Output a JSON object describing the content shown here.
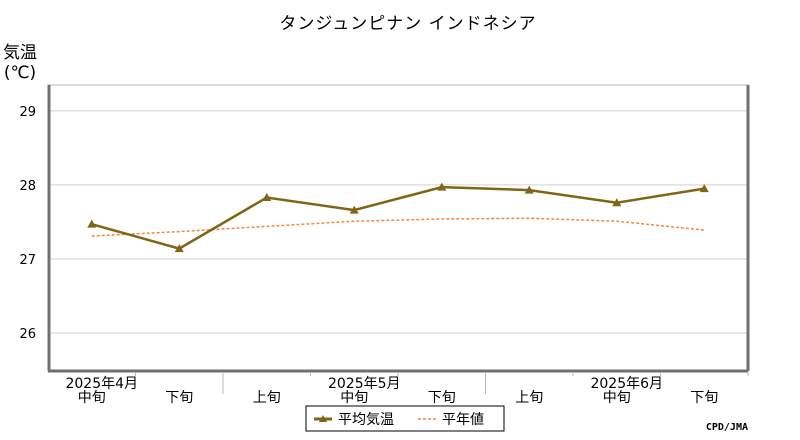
{
  "chart_data": {
    "type": "line",
    "title": "タンジュンピナン インドネシア",
    "ylabel": "気温",
    "yunit": "(℃)",
    "ylim": [
      25.5,
      29.35
    ],
    "yticks": [
      26,
      27,
      28,
      29
    ],
    "grid": true,
    "categories": [
      "中旬",
      "下旬",
      "上旬",
      "中旬",
      "下旬",
      "上旬",
      "中旬",
      "下旬"
    ],
    "month_labels": [
      {
        "label": "2025年4月",
        "at_index": 0
      },
      {
        "label": "2025年5月",
        "at_index": 3
      },
      {
        "label": "2025年6月",
        "at_index": 6
      }
    ],
    "series": [
      {
        "name": "平均気温",
        "color": "#806614",
        "style": "solid",
        "marker": "triangle",
        "values": [
          27.47,
          27.14,
          27.83,
          27.66,
          27.97,
          27.93,
          27.76,
          27.95
        ]
      },
      {
        "name": "平年値",
        "color": "#f08a3c",
        "style": "dashed",
        "marker": "none",
        "values": [
          27.31,
          27.37,
          27.44,
          27.51,
          27.54,
          27.55,
          27.51,
          27.39
        ]
      }
    ],
    "legend_position": "bottom-center",
    "credit": "CPD/JMA"
  }
}
